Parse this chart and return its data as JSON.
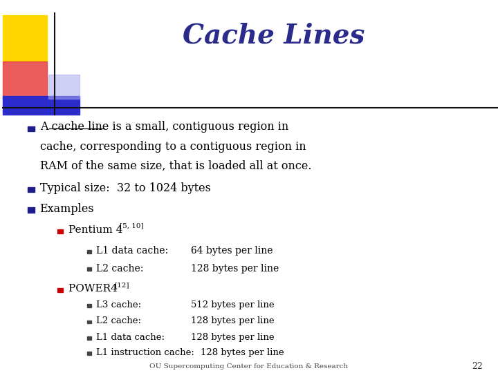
{
  "title": "Cache Lines",
  "title_color": "#2B2B8B",
  "title_fontsize": 28,
  "bg_color": "#FFFFFF",
  "bullet_color": "#1C1C8B",
  "sub_bullet_color": "#CC0000",
  "text_color": "#000000",
  "footer_text": "OU Supercomputing Center for Education & Research",
  "page_number": "22",
  "line1": "A cache line is a small, contiguous region in",
  "line2": "cache, corresponding to a contiguous region in",
  "line3": "RAM of the same size, that is loaded all at once.",
  "bullet2": "Typical size:  32 to 1024 bytes",
  "bullet3": "Examples",
  "sub1": "Pentium 4 ",
  "sub1_super": "[5, 10]",
  "sub1_l1": "L1 data cache:",
  "sub1_l1_val": "64 bytes per line",
  "sub1_l2": "L2 cache:",
  "sub1_l2_val": "128 bytes per line",
  "sub2": "POWER4 ",
  "sub2_super": "[12]",
  "sub2_l1": "L1 instruction cache: 128 bytes per line",
  "sub2_l2": "L1 data cache:",
  "sub2_l2_val": "128 bytes per line",
  "sub2_l3": "L2 cache:",
  "sub2_l3_val": "128 bytes per line",
  "sub2_l4": "L3 cache:",
  "sub2_l4_val": "512 bytes per line"
}
